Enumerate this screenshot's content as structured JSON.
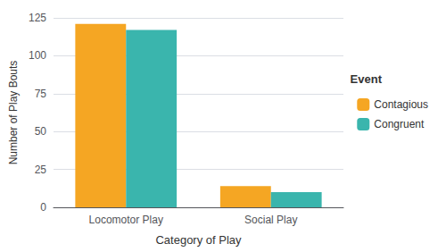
{
  "chart_data": {
    "type": "bar",
    "categories": [
      "Locomotor Play",
      "Social Play"
    ],
    "series": [
      {
        "name": "Contagious",
        "color": "#F5A623",
        "values": [
          121,
          14
        ]
      },
      {
        "name": "Congruent",
        "color": "#3AB5AD",
        "values": [
          117,
          10
        ]
      }
    ],
    "xlabel": "Category of Play",
    "ylabel": "Number of Play Bouts",
    "ylim": [
      0,
      125
    ],
    "yticks": [
      0,
      25,
      50,
      75,
      100,
      125
    ],
    "grid": true,
    "legend": "right",
    "legend_title": "Event"
  }
}
